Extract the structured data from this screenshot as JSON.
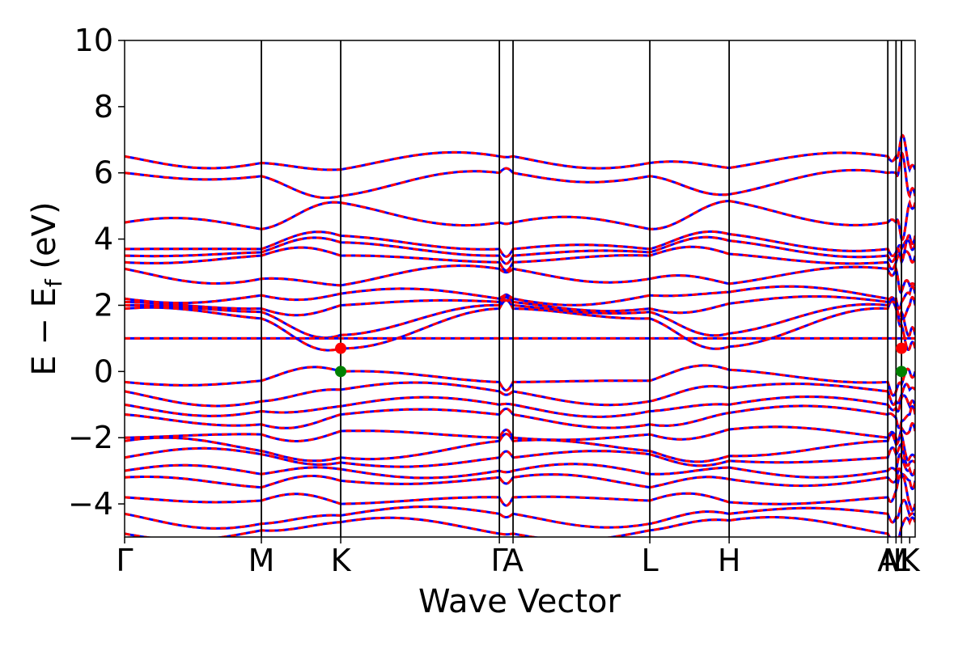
{
  "chart_data": {
    "type": "line",
    "xlabel": "Wave Vector",
    "ylabel_parts": [
      "E − E",
      "f",
      " (eV)"
    ],
    "ylim": [
      -5,
      10
    ],
    "yticks": [
      "−4",
      "−2",
      "0",
      "2",
      "4",
      "6",
      "8",
      "10"
    ],
    "ytick_values": [
      -4,
      -2,
      0,
      2,
      4,
      6,
      8,
      10
    ],
    "kpath": [
      {
        "label": "Γ",
        "k": 0.0
      },
      {
        "label": "M",
        "k": 1.0
      },
      {
        "label": "K",
        "k": 1.58
      },
      {
        "label": "Γ",
        "k": 2.74
      },
      {
        "label": "A",
        "k": 2.84
      },
      {
        "label": "L",
        "k": 3.84
      },
      {
        "label": "H",
        "k": 4.42
      },
      {
        "label": "A",
        "k": 5.58
      },
      {
        "label": "M",
        "k": 5.64
      },
      {
        "label": "L",
        "k": 5.68
      },
      {
        "label": "K",
        "k": 5.74
      }
    ],
    "x_tick_labels": [
      "Γ",
      "M",
      "K",
      "Γ",
      "A",
      "L",
      "H",
      "A",
      "M",
      "L",
      "K"
    ],
    "xlim": [
      0.0,
      5.78
    ],
    "flat_band_energy": 1.0,
    "series": [
      {
        "color": "#0000ff",
        "style": "solid"
      },
      {
        "color": "#ff0000",
        "style": "dashed"
      }
    ],
    "band_anchors_valence": [
      [
        -0.32,
        -0.28,
        0.0,
        -0.4,
        -0.6
      ],
      [
        -0.6,
        -0.9,
        -0.55,
        -0.7,
        -0.9
      ],
      [
        -1.0,
        -1.2,
        -1.05,
        -0.8,
        -1.1
      ],
      [
        -1.3,
        -1.6,
        -1.3,
        -1.5,
        -1.4
      ],
      [
        -2.0,
        -1.9,
        -1.8,
        -1.7,
        -2.0
      ],
      [
        -2.1,
        -2.4,
        -2.6,
        -1.9,
        -2.2
      ],
      [
        -2.6,
        -2.5,
        -2.75,
        -2.2,
        -2.5
      ],
      [
        -3.0,
        -3.1,
        -2.95,
        -2.6,
        -3.0
      ],
      [
        -3.2,
        -3.5,
        -3.3,
        -3.1,
        -3.3
      ],
      [
        -3.8,
        -3.9,
        -4.0,
        -3.2,
        -3.6
      ],
      [
        -4.3,
        -4.6,
        -4.35,
        -4.0,
        -4.4
      ],
      [
        -4.9,
        -4.8,
        -4.55,
        -4.7,
        -5.0
      ]
    ],
    "band_anchors_conduction": [
      [
        1.9,
        1.6,
        0.7,
        1.4,
        1.9
      ],
      [
        2.0,
        1.8,
        1.1,
        1.8,
        2.0
      ],
      [
        2.1,
        1.9,
        2.0,
        1.6,
        2.1
      ],
      [
        2.2,
        2.3,
        2.35,
        2.1,
        2.2
      ],
      [
        3.1,
        2.8,
        2.6,
        2.4,
        3.1
      ],
      [
        3.3,
        3.5,
        3.5,
        3.4,
        3.3
      ],
      [
        3.5,
        3.6,
        3.9,
        3.7,
        3.5
      ],
      [
        3.7,
        3.7,
        4.1,
        3.3,
        3.6
      ],
      [
        4.5,
        4.3,
        5.1,
        4.0,
        4.5
      ],
      [
        6.0,
        5.9,
        5.3,
        6.6,
        6.0
      ],
      [
        6.5,
        6.3,
        6.1,
        7.1,
        6.5
      ]
    ],
    "special_points": [
      {
        "name": "CBM",
        "energy": 0.7,
        "color": "#ff0000"
      },
      {
        "name": "VBM",
        "energy": 0.0,
        "color": "#008000"
      }
    ],
    "axes_color": "#000000",
    "line_width": 3
  }
}
